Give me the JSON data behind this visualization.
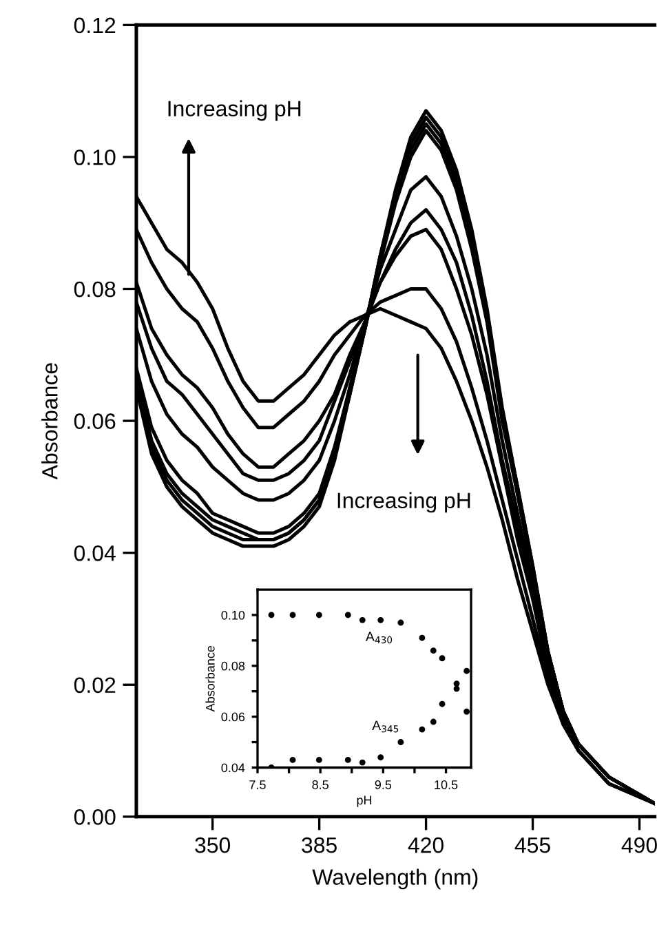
{
  "chart_data": [
    {
      "type": "line",
      "xlabel": "Wavelength (nm)",
      "ylabel": "Absorbance",
      "x": [
        325,
        330,
        335,
        340,
        345,
        350,
        355,
        360,
        365,
        370,
        375,
        380,
        385,
        390,
        395,
        400,
        405,
        410,
        415,
        420,
        425,
        430,
        435,
        440,
        445,
        450,
        455,
        460,
        465,
        470,
        480,
        495
      ],
      "series": [
        {
          "color": "#000000",
          "values": [
            0.065,
            0.055,
            0.05,
            0.047,
            0.045,
            0.043,
            0.042,
            0.041,
            0.041,
            0.041,
            0.042,
            0.044,
            0.047,
            0.054,
            0.064,
            0.074,
            0.085,
            0.095,
            0.103,
            0.107,
            0.104,
            0.098,
            0.089,
            0.077,
            0.062,
            0.05,
            0.038,
            0.025,
            0.016,
            0.011,
            0.006,
            0.002
          ]
        },
        {
          "color": "#000000",
          "values": [
            0.066,
            0.056,
            0.051,
            0.048,
            0.046,
            0.044,
            0.043,
            0.042,
            0.042,
            0.042,
            0.043,
            0.045,
            0.048,
            0.055,
            0.064,
            0.074,
            0.085,
            0.094,
            0.102,
            0.106,
            0.103,
            0.097,
            0.088,
            0.076,
            0.061,
            0.05,
            0.038,
            0.025,
            0.016,
            0.011,
            0.006,
            0.002
          ]
        },
        {
          "color": "#000000",
          "values": [
            0.067,
            0.057,
            0.052,
            0.049,
            0.047,
            0.045,
            0.044,
            0.043,
            0.042,
            0.042,
            0.043,
            0.045,
            0.048,
            0.055,
            0.065,
            0.074,
            0.085,
            0.094,
            0.101,
            0.105,
            0.102,
            0.096,
            0.087,
            0.076,
            0.061,
            0.049,
            0.037,
            0.025,
            0.016,
            0.011,
            0.006,
            0.002
          ]
        },
        {
          "color": "#000000",
          "values": [
            0.068,
            0.059,
            0.054,
            0.051,
            0.049,
            0.046,
            0.045,
            0.044,
            0.043,
            0.043,
            0.044,
            0.046,
            0.049,
            0.056,
            0.065,
            0.074,
            0.084,
            0.093,
            0.1,
            0.104,
            0.101,
            0.095,
            0.086,
            0.075,
            0.06,
            0.049,
            0.037,
            0.025,
            0.016,
            0.011,
            0.006,
            0.002
          ]
        },
        {
          "color": "#000000",
          "values": [
            0.074,
            0.066,
            0.061,
            0.058,
            0.056,
            0.053,
            0.051,
            0.049,
            0.048,
            0.048,
            0.049,
            0.051,
            0.054,
            0.06,
            0.067,
            0.075,
            0.083,
            0.089,
            0.095,
            0.097,
            0.094,
            0.088,
            0.08,
            0.07,
            0.057,
            0.046,
            0.035,
            0.024,
            0.015,
            0.011,
            0.006,
            0.002
          ]
        },
        {
          "color": "#000000",
          "values": [
            0.078,
            0.071,
            0.066,
            0.064,
            0.061,
            0.058,
            0.055,
            0.052,
            0.051,
            0.051,
            0.052,
            0.054,
            0.057,
            0.063,
            0.069,
            0.075,
            0.081,
            0.086,
            0.09,
            0.092,
            0.089,
            0.084,
            0.076,
            0.066,
            0.054,
            0.044,
            0.034,
            0.023,
            0.015,
            0.011,
            0.006,
            0.002
          ]
        },
        {
          "color": "#000000",
          "values": [
            0.081,
            0.074,
            0.07,
            0.067,
            0.065,
            0.062,
            0.058,
            0.055,
            0.053,
            0.053,
            0.055,
            0.057,
            0.06,
            0.064,
            0.07,
            0.075,
            0.081,
            0.085,
            0.088,
            0.089,
            0.086,
            0.08,
            0.073,
            0.064,
            0.053,
            0.042,
            0.033,
            0.022,
            0.015,
            0.01,
            0.005,
            0.002
          ]
        },
        {
          "color": "#000000",
          "values": [
            0.089,
            0.084,
            0.08,
            0.077,
            0.075,
            0.071,
            0.066,
            0.062,
            0.059,
            0.059,
            0.061,
            0.063,
            0.066,
            0.07,
            0.073,
            0.076,
            0.078,
            0.079,
            0.08,
            0.08,
            0.077,
            0.072,
            0.065,
            0.057,
            0.048,
            0.039,
            0.03,
            0.021,
            0.014,
            0.01,
            0.005,
            0.002
          ]
        },
        {
          "color": "#000000",
          "values": [
            0.094,
            0.09,
            0.086,
            0.084,
            0.081,
            0.077,
            0.071,
            0.066,
            0.063,
            0.063,
            0.065,
            0.067,
            0.07,
            0.073,
            0.075,
            0.076,
            0.077,
            0.076,
            0.075,
            0.074,
            0.071,
            0.066,
            0.06,
            0.053,
            0.045,
            0.036,
            0.028,
            0.02,
            0.014,
            0.01,
            0.005,
            0.002
          ]
        }
      ],
      "xlim": [
        325,
        495
      ],
      "xticks": [
        350,
        385,
        420,
        455,
        490
      ],
      "ylim": [
        0,
        0.12
      ],
      "yticks": [
        {
          "value": 0,
          "label": "0.00"
        },
        {
          "value": 0.02,
          "label": "0.02"
        },
        {
          "value": 0.04,
          "label": "0.04"
        },
        {
          "value": 0.06,
          "label": "0.06"
        },
        {
          "value": 0.08,
          "label": "0.08"
        },
        {
          "value": 0.1,
          "label": "0.10"
        },
        {
          "value": 0.12,
          "label": "0.12"
        }
      ],
      "grid": false,
      "legend": false,
      "marker": "none",
      "line_style": "solid",
      "annotations": [
        "Increasing pH",
        "Increasing pH"
      ]
    },
    {
      "type": "scatter",
      "xlabel": "pH",
      "ylabel": "Absorbance",
      "series": [
        {
          "color": "#000000",
          "x": [
            7.72,
            8.06,
            8.48,
            8.94,
            9.17,
            9.46,
            9.78,
            10.12,
            10.3,
            10.44,
            10.67,
            10.83
          ],
          "values": [
            0.1,
            0.1,
            0.1,
            0.1,
            0.098,
            0.098,
            0.097,
            0.091,
            0.086,
            0.083,
            0.073,
            0.062
          ]
        },
        {
          "color": "#000000",
          "x": [
            7.72,
            8.06,
            8.48,
            8.94,
            9.17,
            9.46,
            9.78,
            10.12,
            10.3,
            10.44,
            10.67,
            10.83
          ],
          "values": [
            0.04,
            0.043,
            0.043,
            0.043,
            0.042,
            0.044,
            0.05,
            0.055,
            0.058,
            0.065,
            0.071,
            0.078
          ]
        }
      ],
      "xlim": [
        7.5,
        10.9
      ],
      "xticks": [
        7.5,
        {
          "value": 8,
          "label": null
        },
        8.5,
        {
          "value": 9,
          "label": null
        },
        9.5,
        {
          "value": 10,
          "label": null
        },
        10.5
      ],
      "ylim": [
        0.04,
        0.11
      ],
      "yticks": [
        0.04,
        {
          "value": 0.05,
          "label": null
        },
        0.06,
        {
          "value": 0.07,
          "label": null
        },
        0.08,
        {
          "value": 0.09,
          "label": null
        },
        {
          "value": 0.1,
          "label": "0.10"
        }
      ],
      "grid": false,
      "legend": false,
      "marker": "circle",
      "annotations": [
        "A$_{430}$",
        "A$_{345}$"
      ]
    }
  ]
}
